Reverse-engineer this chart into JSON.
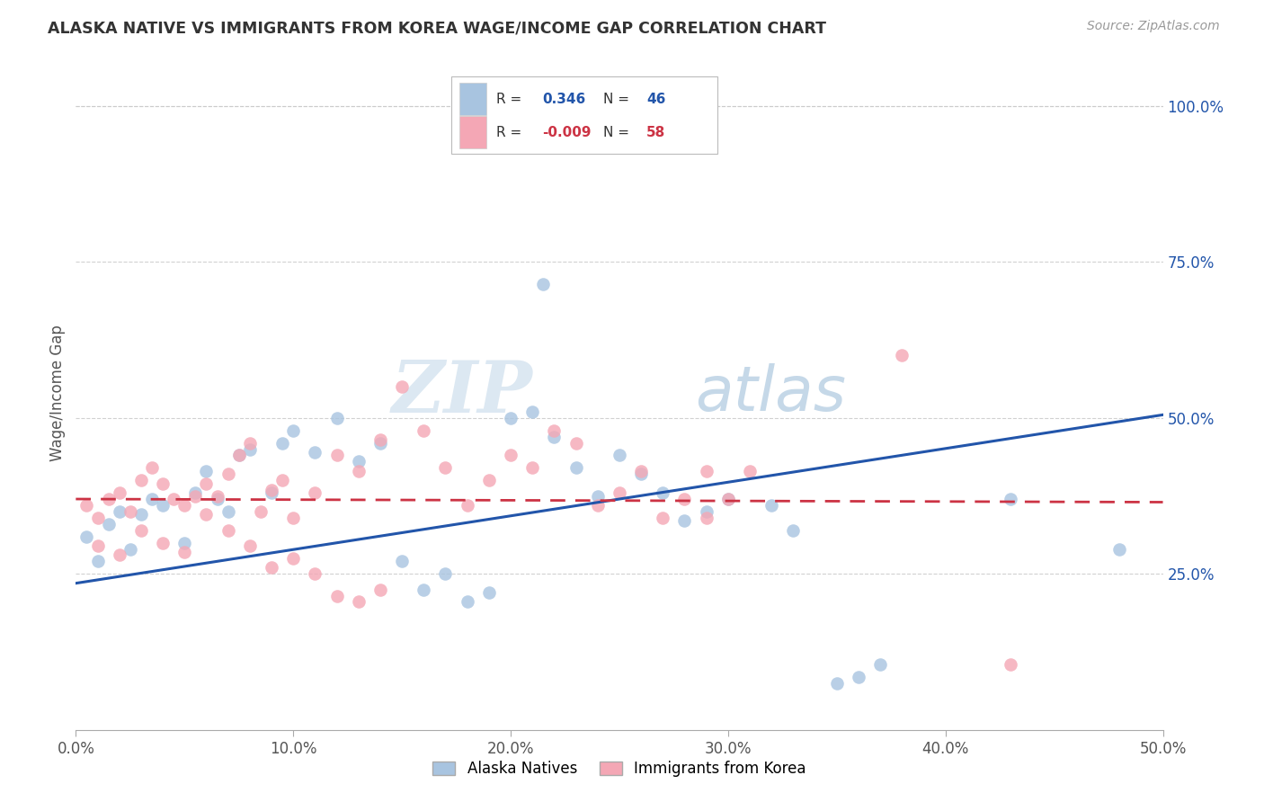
{
  "title": "ALASKA NATIVE VS IMMIGRANTS FROM KOREA WAGE/INCOME GAP CORRELATION CHART",
  "source": "Source: ZipAtlas.com",
  "xlabel_ticks": [
    "0.0%",
    "10.0%",
    "20.0%",
    "30.0%",
    "40.0%",
    "50.0%"
  ],
  "ylabel_ticks": [
    "25.0%",
    "50.0%",
    "75.0%",
    "100.0%"
  ],
  "xlabel_values": [
    0.0,
    0.1,
    0.2,
    0.3,
    0.4,
    0.5
  ],
  "ylabel_values": [
    0.25,
    0.5,
    0.75,
    1.0
  ],
  "ylabel": "Wage/Income Gap",
  "xlim": [
    0.0,
    0.5
  ],
  "ylim": [
    0.0,
    1.08
  ],
  "blue_R": "0.346",
  "blue_N": "46",
  "pink_R": "-0.009",
  "pink_N": "58",
  "blue_color": "#a8c4e0",
  "pink_color": "#f4a7b5",
  "blue_line_color": "#2255aa",
  "pink_line_color": "#cc3344",
  "legend_label_blue": "Alaska Natives",
  "legend_label_pink": "Immigrants from Korea",
  "watermark_zip": "ZIP",
  "watermark_atlas": "atlas",
  "background_color": "#ffffff",
  "grid_color": "#cccccc",
  "blue_x": [
    0.005,
    0.01,
    0.015,
    0.02,
    0.025,
    0.03,
    0.035,
    0.04,
    0.05,
    0.055,
    0.06,
    0.065,
    0.07,
    0.075,
    0.08,
    0.09,
    0.095,
    0.1,
    0.11,
    0.12,
    0.13,
    0.14,
    0.15,
    0.16,
    0.17,
    0.18,
    0.19,
    0.2,
    0.21,
    0.22,
    0.23,
    0.24,
    0.25,
    0.26,
    0.27,
    0.28,
    0.29,
    0.3,
    0.32,
    0.33,
    0.35,
    0.36,
    0.37,
    0.43,
    0.48,
    0.215
  ],
  "blue_y": [
    0.31,
    0.27,
    0.33,
    0.35,
    0.29,
    0.345,
    0.37,
    0.36,
    0.3,
    0.38,
    0.415,
    0.37,
    0.35,
    0.44,
    0.45,
    0.38,
    0.46,
    0.48,
    0.445,
    0.5,
    0.43,
    0.46,
    0.27,
    0.225,
    0.25,
    0.205,
    0.22,
    0.5,
    0.51,
    0.47,
    0.42,
    0.375,
    0.44,
    0.41,
    0.38,
    0.335,
    0.35,
    0.37,
    0.36,
    0.32,
    0.075,
    0.085,
    0.105,
    0.37,
    0.29,
    0.715
  ],
  "pink_x": [
    0.005,
    0.01,
    0.015,
    0.02,
    0.025,
    0.03,
    0.035,
    0.04,
    0.045,
    0.05,
    0.055,
    0.06,
    0.065,
    0.07,
    0.075,
    0.08,
    0.085,
    0.09,
    0.095,
    0.1,
    0.11,
    0.12,
    0.13,
    0.14,
    0.15,
    0.16,
    0.17,
    0.18,
    0.19,
    0.2,
    0.21,
    0.22,
    0.23,
    0.24,
    0.25,
    0.26,
    0.27,
    0.28,
    0.29,
    0.3,
    0.01,
    0.02,
    0.03,
    0.04,
    0.05,
    0.06,
    0.07,
    0.08,
    0.09,
    0.1,
    0.11,
    0.12,
    0.13,
    0.14,
    0.29,
    0.31,
    0.38,
    0.43
  ],
  "pink_y": [
    0.36,
    0.34,
    0.37,
    0.38,
    0.35,
    0.4,
    0.42,
    0.395,
    0.37,
    0.36,
    0.375,
    0.395,
    0.375,
    0.41,
    0.44,
    0.46,
    0.35,
    0.385,
    0.4,
    0.34,
    0.38,
    0.44,
    0.415,
    0.465,
    0.55,
    0.48,
    0.42,
    0.36,
    0.4,
    0.44,
    0.42,
    0.48,
    0.46,
    0.36,
    0.38,
    0.415,
    0.34,
    0.37,
    0.415,
    0.37,
    0.295,
    0.28,
    0.32,
    0.3,
    0.285,
    0.345,
    0.32,
    0.295,
    0.26,
    0.275,
    0.25,
    0.215,
    0.205,
    0.225,
    0.34,
    0.415,
    0.6,
    0.105
  ],
  "blue_trend_x": [
    0.0,
    0.5
  ],
  "blue_trend_y": [
    0.235,
    0.505
  ],
  "pink_trend_x": [
    0.0,
    0.5
  ],
  "pink_trend_y": [
    0.37,
    0.365
  ]
}
